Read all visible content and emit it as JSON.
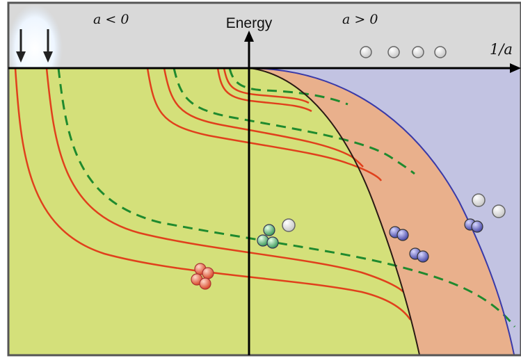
{
  "diagram": {
    "title": "",
    "y_axis_label": "Energy",
    "x_axis_label": "1/a",
    "region_negative_label": "a < 0",
    "region_positive_label": "a > 0",
    "colors": {
      "top_band": "#d9d9d9",
      "efimov_region": "#d4e07a",
      "atom_dimer_region": "#e9b08c",
      "free_atom_region": "#c2c3e2",
      "tetramer_curve": "#e0401c",
      "trimer_curve": "#1f8a2e",
      "dimer_boundary": "#3a3aa8",
      "frame": "#555555",
      "axis": "#000000"
    },
    "icons": [
      "down-arrow-icon",
      "down-arrow-icon",
      "free-atom-icon",
      "trimer-icon",
      "tetramer-icon",
      "dimer-icon"
    ]
  }
}
